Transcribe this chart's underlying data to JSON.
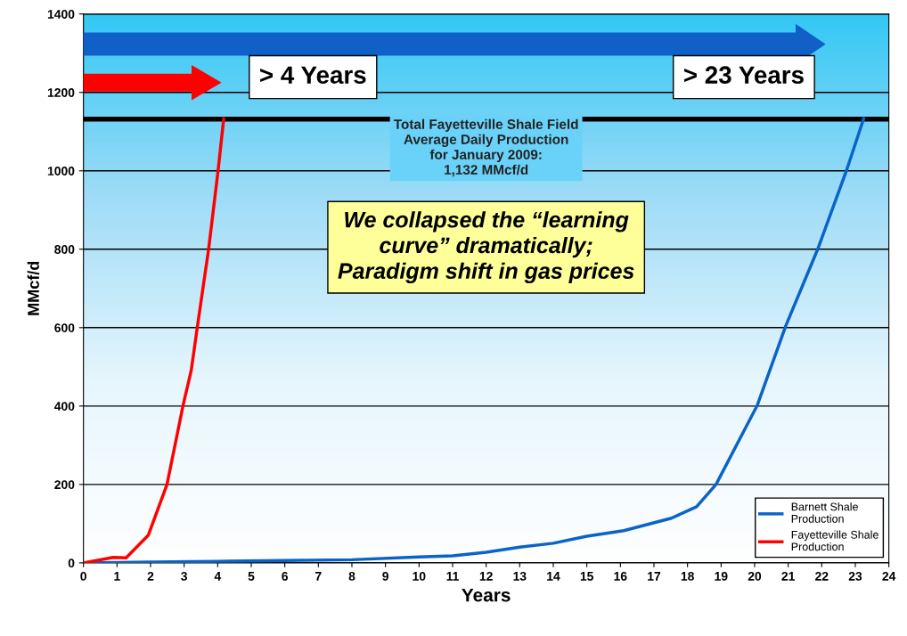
{
  "chart_data": {
    "type": "line",
    "xlabel": "Years",
    "ylabel": "MMcf/d",
    "xlim": [
      0,
      24
    ],
    "xticks": [
      0,
      1,
      2,
      3,
      4,
      5,
      6,
      7,
      8,
      9,
      10,
      11,
      12,
      13,
      14,
      15,
      16,
      17,
      18,
      19,
      20,
      21,
      22,
      23,
      24
    ],
    "ylim": [
      0,
      1400
    ],
    "yticks": [
      0,
      200,
      400,
      600,
      800,
      1000,
      1200,
      1400
    ],
    "grid": "y",
    "legend": "bottom right",
    "series": [
      {
        "name": "Barnett Shale Production",
        "color": "#0a64c8",
        "x": [
          0,
          2,
          4,
          6,
          8,
          10,
          11,
          12,
          13,
          14,
          15,
          16.1,
          17.52,
          18.27,
          18.85,
          20.08,
          20.93,
          21.88,
          22.73,
          23.25
        ],
        "values": [
          0,
          2,
          4,
          6,
          8,
          15,
          18,
          27,
          40,
          50,
          68,
          82,
          114,
          143,
          200,
          402,
          605,
          800,
          999,
          1133
        ]
      },
      {
        "name": "Fayetteville Shale Production",
        "color": "#ff0000",
        "x": [
          0,
          0.89,
          1.27,
          1.93,
          2.49,
          2.97,
          3.21,
          3.4,
          3.73,
          4.01,
          4.18
        ],
        "values": [
          0,
          14,
          13,
          70,
          200,
          402,
          490,
          605,
          800,
          999,
          1133
        ]
      }
    ],
    "ref_lines": [
      {
        "axis": "y",
        "value": 1132,
        "label": "Total Fayetteville Shale Field\nAverage Daily Production\nfor January 2009:\n1,132 MMcf/d",
        "color": "#000000"
      }
    ],
    "annotations": [
      "> 4 Years",
      "> 23 Years",
      "We collapsed the “learning\ncurve” dramatically;\nParadigm shift in gas prices"
    ]
  }
}
